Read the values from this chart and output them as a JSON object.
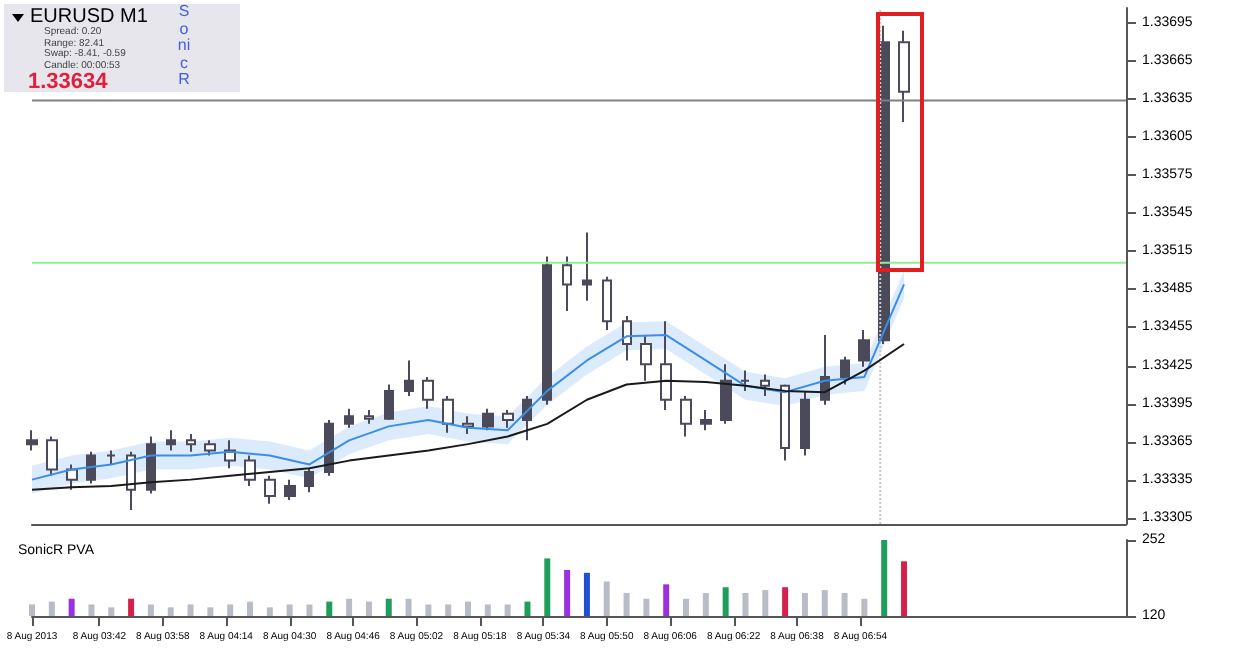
{
  "chart_data": [
    {
      "type": "candlestick",
      "title": "EURUSD  M1",
      "annotations": [
        "Spread: 0.20",
        "Range: 82.41",
        "Swap: -8.41, -0.59",
        "Candle: 00:00:53",
        "1.33634",
        "SonicR"
      ],
      "x": [
        "2013-08-08T03:25",
        "2013-08-08T03:30",
        "2013-08-08T03:35",
        "2013-08-08T03:40",
        "2013-08-08T03:45",
        "2013-08-08T03:50",
        "2013-08-08T03:55",
        "2013-08-08T04:00",
        "2013-08-08T04:05",
        "2013-08-08T04:10",
        "2013-08-08T04:15",
        "2013-08-08T04:20",
        "2013-08-08T04:25",
        "2013-08-08T04:30",
        "2013-08-08T04:35",
        "2013-08-08T04:40",
        "2013-08-08T04:45",
        "2013-08-08T04:50",
        "2013-08-08T04:55",
        "2013-08-08T05:00",
        "2013-08-08T05:05",
        "2013-08-08T05:10",
        "2013-08-08T05:15",
        "2013-08-08T05:20",
        "2013-08-08T05:25",
        "2013-08-08T05:30",
        "2013-08-08T05:35",
        "2013-08-08T05:40",
        "2013-08-08T05:45",
        "2013-08-08T05:50",
        "2013-08-08T05:55",
        "2013-08-08T06:00",
        "2013-08-08T06:05",
        "2013-08-08T06:10",
        "2013-08-08T06:15",
        "2013-08-08T06:20",
        "2013-08-08T06:25",
        "2013-08-08T06:30",
        "2013-08-08T06:35",
        "2013-08-08T06:40",
        "2013-08-08T06:45",
        "2013-08-08T06:50",
        "2013-08-08T06:55",
        "2013-08-08T07:00",
        "2013-08-08T07:05"
      ],
      "ohlc": [
        [
          1.33363,
          1.33374,
          1.33358,
          1.33366
        ],
        [
          1.33366,
          1.33369,
          1.33338,
          1.33343
        ],
        [
          1.33343,
          1.33347,
          1.33327,
          1.33335
        ],
        [
          1.33335,
          1.33357,
          1.33332,
          1.33354
        ],
        [
          1.33354,
          1.33358,
          1.33347,
          1.33354
        ],
        [
          1.33354,
          1.33357,
          1.33311,
          1.33327
        ],
        [
          1.33327,
          1.33369,
          1.33324,
          1.33363
        ],
        [
          1.33363,
          1.33374,
          1.33358,
          1.33366
        ],
        [
          1.33366,
          1.33371,
          1.33357,
          1.33363
        ],
        [
          1.33363,
          1.33366,
          1.33354,
          1.33358
        ],
        [
          1.33358,
          1.33366,
          1.33344,
          1.3335
        ],
        [
          1.3335,
          1.33354,
          1.3333,
          1.33335
        ],
        [
          1.33335,
          1.33338,
          1.33316,
          1.33322
        ],
        [
          1.33322,
          1.33335,
          1.33319,
          1.3333
        ],
        [
          1.3333,
          1.33344,
          1.33325,
          1.33341
        ],
        [
          1.33341,
          1.33382,
          1.33338,
          1.33379
        ],
        [
          1.33379,
          1.33391,
          1.33376,
          1.33385
        ],
        [
          1.33385,
          1.3339,
          1.33379,
          1.33383
        ],
        [
          1.33383,
          1.3341,
          1.33382,
          1.33405
        ],
        [
          1.33405,
          1.33429,
          1.33401,
          1.33413
        ],
        [
          1.33413,
          1.33416,
          1.33391,
          1.33398
        ],
        [
          1.33398,
          1.33401,
          1.33372,
          1.33379
        ],
        [
          1.33379,
          1.33385,
          1.33371,
          1.33377
        ],
        [
          1.33377,
          1.33391,
          1.33374,
          1.33387
        ],
        [
          1.33387,
          1.3339,
          1.33376,
          1.33382
        ],
        [
          1.33382,
          1.33401,
          1.33366,
          1.33398
        ],
        [
          1.33398,
          1.33511,
          1.33394,
          1.33504
        ],
        [
          1.33504,
          1.33511,
          1.33468,
          1.33489
        ],
        [
          1.33489,
          1.3353,
          1.33476,
          1.33492
        ],
        [
          1.33492,
          1.33495,
          1.33453,
          1.3346
        ],
        [
          1.3346,
          1.33464,
          1.33429,
          1.33442
        ],
        [
          1.33442,
          1.33448,
          1.33413,
          1.33426
        ],
        [
          1.33426,
          1.3346,
          1.3339,
          1.33398
        ],
        [
          1.33398,
          1.33401,
          1.33369,
          1.33379
        ],
        [
          1.33379,
          1.3339,
          1.33374,
          1.33382
        ],
        [
          1.33382,
          1.33426,
          1.33379,
          1.33413
        ],
        [
          1.33413,
          1.33421,
          1.33405,
          1.33413
        ],
        [
          1.33413,
          1.33418,
          1.33401,
          1.33409
        ],
        [
          1.33409,
          1.3341,
          1.3335,
          1.3336
        ],
        [
          1.3336,
          1.33405,
          1.33354,
          1.33398
        ],
        [
          1.33398,
          1.33449,
          1.33394,
          1.33416
        ],
        [
          1.33416,
          1.33432,
          1.3341,
          1.33429
        ],
        [
          1.33429,
          1.33453,
          1.33424,
          1.33445
        ],
        [
          1.33445,
          1.33693,
          1.33442,
          1.3368
        ],
        [
          1.3368,
          1.33689,
          1.33617,
          1.33641
        ]
      ],
      "color": "#4a4a5a",
      "series": [
        {
          "type": "line",
          "color": "#3b8ee8",
          "x": [
            "2013-08-08T03:25",
            "2013-08-08T03:35",
            "2013-08-08T03:45",
            "2013-08-08T03:55",
            "2013-08-08T04:05",
            "2013-08-08T04:15",
            "2013-08-08T04:25",
            "2013-08-08T04:35",
            "2013-08-08T04:45",
            "2013-08-08T04:55",
            "2013-08-08T05:05",
            "2013-08-08T05:15",
            "2013-08-08T05:25",
            "2013-08-08T05:35",
            "2013-08-08T05:45",
            "2013-08-08T05:55",
            "2013-08-08T06:05",
            "2013-08-08T06:15",
            "2013-08-08T06:25",
            "2013-08-08T06:35",
            "2013-08-08T06:45",
            "2013-08-08T06:55",
            "2013-08-08T07:05"
          ],
          "values": [
            1.33335,
            1.33343,
            1.33347,
            1.33354,
            1.33354,
            1.33357,
            1.33354,
            1.33347,
            1.33366,
            1.33377,
            1.33382,
            1.33376,
            1.33374,
            1.33405,
            1.33429,
            1.33448,
            1.33449,
            1.33429,
            1.33409,
            1.33404,
            1.33413,
            1.33416,
            1.33489
          ],
          "lower": [
            1.33324,
            1.33332,
            1.33336,
            1.33343,
            1.33343,
            1.33346,
            1.33343,
            1.33336,
            1.33355,
            1.33366,
            1.33371,
            1.33365,
            1.33363,
            1.33394,
            1.33418,
            1.33437,
            1.33438,
            1.33418,
            1.33398,
            1.33393,
            1.33402,
            1.33405,
            1.33478
          ],
          "upper": [
            1.33346,
            1.33354,
            1.33358,
            1.33365,
            1.33365,
            1.33368,
            1.33365,
            1.33358,
            1.33377,
            1.33388,
            1.33393,
            1.33387,
            1.33385,
            1.33416,
            1.3344,
            1.33459,
            1.3346,
            1.3344,
            1.3342,
            1.33415,
            1.33424,
            1.33427,
            1.335
          ]
        },
        {
          "type": "line",
          "color": "#1a1a1a",
          "x": [
            "2013-08-08T03:25",
            "2013-08-08T03:35",
            "2013-08-08T03:45",
            "2013-08-08T03:55",
            "2013-08-08T04:05",
            "2013-08-08T04:15",
            "2013-08-08T04:25",
            "2013-08-08T04:35",
            "2013-08-08T04:45",
            "2013-08-08T04:55",
            "2013-08-08T05:05",
            "2013-08-08T05:15",
            "2013-08-08T05:25",
            "2013-08-08T05:35",
            "2013-08-08T05:45",
            "2013-08-08T05:55",
            "2013-08-08T06:05",
            "2013-08-08T06:15",
            "2013-08-08T06:25",
            "2013-08-08T06:35",
            "2013-08-08T06:45",
            "2013-08-08T06:55",
            "2013-08-08T07:05"
          ],
          "values": [
            1.33327,
            1.33329,
            1.3333,
            1.33333,
            1.33335,
            1.33338,
            1.33341,
            1.33344,
            1.3335,
            1.33354,
            1.33358,
            1.33363,
            1.33369,
            1.33379,
            1.33398,
            1.3341,
            1.33413,
            1.33412,
            1.33409,
            1.33405,
            1.33404,
            1.33421,
            1.33442
          ]
        }
      ],
      "xlim": [
        "2013-08-08T03:25",
        "2013-08-08T08:01"
      ],
      "ylim": [
        1.333,
        1.33707
      ],
      "yticks": [
        1.33305,
        1.33335,
        1.33365,
        1.33395,
        1.33425,
        1.33455,
        1.33485,
        1.33515,
        1.33545,
        1.33575,
        1.33605,
        1.33635,
        1.33665,
        1.33695
      ],
      "ref_lines": [
        {
          "axis": "y",
          "value": 1.33506,
          "color": "#90ee90"
        },
        {
          "axis": "y",
          "value": 1.33634,
          "color": "#808080"
        },
        {
          "axis": "x",
          "value": "2013-08-08T06:59",
          "color": "#c8c8c8",
          "line_style": "dotted"
        }
      ],
      "tick_labels": "y"
    },
    {
      "type": "bar",
      "title": "SonicR PVA",
      "x": [
        "2013-08-08T03:25",
        "2013-08-08T03:30",
        "2013-08-08T03:35",
        "2013-08-08T03:40",
        "2013-08-08T03:45",
        "2013-08-08T03:50",
        "2013-08-08T03:55",
        "2013-08-08T04:00",
        "2013-08-08T04:05",
        "2013-08-08T04:10",
        "2013-08-08T04:15",
        "2013-08-08T04:20",
        "2013-08-08T04:25",
        "2013-08-08T04:30",
        "2013-08-08T04:35",
        "2013-08-08T04:40",
        "2013-08-08T04:45",
        "2013-08-08T04:50",
        "2013-08-08T04:55",
        "2013-08-08T05:00",
        "2013-08-08T05:05",
        "2013-08-08T05:10",
        "2013-08-08T05:15",
        "2013-08-08T05:20",
        "2013-08-08T05:25",
        "2013-08-08T05:30",
        "2013-08-08T05:35",
        "2013-08-08T05:40",
        "2013-08-08T05:45",
        "2013-08-08T05:50",
        "2013-08-08T05:55",
        "2013-08-08T06:00",
        "2013-08-08T06:05",
        "2013-08-08T06:10",
        "2013-08-08T06:15",
        "2013-08-08T06:20",
        "2013-08-08T06:25",
        "2013-08-08T06:30",
        "2013-08-08T06:35",
        "2013-08-08T06:40",
        "2013-08-08T06:45",
        "2013-08-08T06:50",
        "2013-08-08T06:55",
        "2013-08-08T07:00",
        "2013-08-08T07:05"
      ],
      "values": [
        140,
        145,
        150,
        140,
        135,
        150,
        140,
        135,
        140,
        135,
        140,
        145,
        135,
        140,
        140,
        145,
        150,
        145,
        150,
        150,
        140,
        140,
        145,
        140,
        140,
        145,
        220,
        200,
        195,
        180,
        160,
        150,
        175,
        150,
        160,
        170,
        160,
        165,
        170,
        160,
        165,
        160,
        150,
        252,
        215
      ],
      "colors": [
        "#b8bcc6",
        "#b8bcc6",
        "#9b30e0",
        "#b8bcc6",
        "#b8bcc6",
        "#d6204c",
        "#b8bcc6",
        "#b8bcc6",
        "#b8bcc6",
        "#b8bcc6",
        "#b8bcc6",
        "#b8bcc6",
        "#b8bcc6",
        "#b8bcc6",
        "#b8bcc6",
        "#1e9e5a",
        "#b8bcc6",
        "#b8bcc6",
        "#1e9e5a",
        "#b8bcc6",
        "#b8bcc6",
        "#b8bcc6",
        "#b8bcc6",
        "#b8bcc6",
        "#b8bcc6",
        "#1e9e5a",
        "#1e9e5a",
        "#9b30e0",
        "#2050d0",
        "#b8bcc6",
        "#b8bcc6",
        "#b8bcc6",
        "#9b30e0",
        "#b8bcc6",
        "#b8bcc6",
        "#1e9e5a",
        "#b8bcc6",
        "#b8bcc6",
        "#d6204c",
        "#b8bcc6",
        "#b8bcc6",
        "#b8bcc6",
        "#b8bcc6",
        "#1e9e5a",
        "#d6204c"
      ],
      "xlim": [
        "2013-08-08T03:25",
        "2013-08-08T08:01"
      ],
      "xticks": [
        {
          "value": "2013-08-08T03:25",
          "label": "8 Aug 2013"
        },
        {
          "value": "2013-08-08T03:42",
          "label": "8 Aug 03:42"
        },
        {
          "value": "2013-08-08T03:58",
          "label": "8 Aug 03:58"
        },
        {
          "value": "2013-08-08T04:14",
          "label": "8 Aug 04:14"
        },
        {
          "value": "2013-08-08T04:30",
          "label": "8 Aug 04:30"
        },
        {
          "value": "2013-08-08T04:46",
          "label": "8 Aug 04:46"
        },
        {
          "value": "2013-08-08T05:02",
          "label": "8 Aug 05:02"
        },
        {
          "value": "2013-08-08T05:18",
          "label": "8 Aug 05:18"
        },
        {
          "value": "2013-08-08T05:34",
          "label": "8 Aug 05:34"
        },
        {
          "value": "2013-08-08T05:50",
          "label": "8 Aug 05:50"
        },
        {
          "value": "2013-08-08T06:06",
          "label": "8 Aug 06:06"
        },
        {
          "value": "2013-08-08T06:22",
          "label": "8 Aug 06:22"
        },
        {
          "value": "2013-08-08T06:38",
          "label": "8 Aug 06:38"
        },
        {
          "value": "2013-08-08T06:54",
          "label": "8 Aug 06:54"
        }
      ],
      "ylim": [
        120,
        252
      ],
      "yticks": [
        120,
        252
      ]
    }
  ]
}
